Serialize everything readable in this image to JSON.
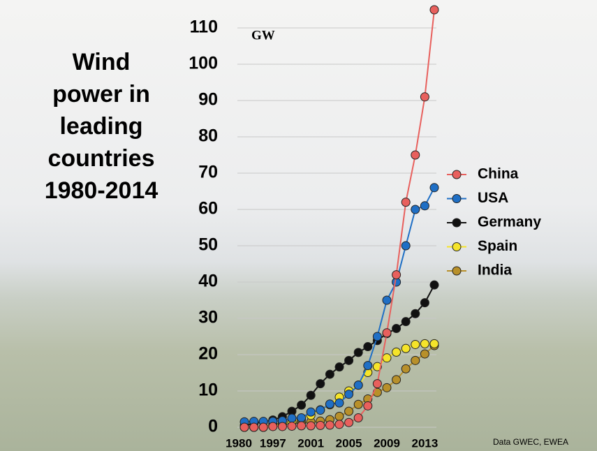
{
  "chart_data": {
    "type": "line",
    "title_lines": [
      "Wind",
      "power in",
      "leading",
      "countries",
      "1980-2014"
    ],
    "y_unit": "GW",
    "source": "Data GWEC, EWEA",
    "categories": [
      "1980",
      null,
      null,
      "1997",
      null,
      null,
      null,
      "2001",
      null,
      null,
      null,
      "2005",
      null,
      null,
      null,
      "2009",
      null,
      null,
      null,
      "2013",
      null
    ],
    "series": [
      {
        "name": "China",
        "color": "#e8605d",
        "values": [
          0,
          0,
          0,
          0.2,
          0.2,
          0.3,
          0.4,
          0.4,
          0.5,
          0.6,
          0.8,
          1.3,
          2.6,
          5.9,
          12,
          26,
          42,
          62,
          75,
          91,
          115
        ]
      },
      {
        "name": "USA",
        "color": "#1f6fc5",
        "values": [
          1.5,
          1.6,
          1.6,
          1.6,
          1.8,
          2.5,
          2.6,
          4.2,
          4.7,
          6.4,
          6.7,
          9.1,
          11.6,
          17,
          25,
          35,
          40,
          50,
          60,
          61,
          66
        ]
      },
      {
        "name": "Germany",
        "color": "#111111",
        "values": [
          0.5,
          1,
          1.5,
          2,
          2.9,
          4.4,
          6.1,
          8.8,
          12,
          14.6,
          16.6,
          18.4,
          20.6,
          22.2,
          23.9,
          25.8,
          27.2,
          29.1,
          31.3,
          34.3,
          39.2
        ]
      },
      {
        "name": "Spain",
        "color": "#f5e42a",
        "values": [
          0,
          0,
          0,
          0.4,
          0.8,
          1.5,
          2.2,
          3.3,
          4.8,
          6.2,
          8.3,
          10,
          11.6,
          15.1,
          16.7,
          19.1,
          20.7,
          21.7,
          22.8,
          23,
          23
        ]
      },
      {
        "name": "India",
        "color": "#b8902a",
        "values": [
          0,
          0,
          0,
          0.9,
          1,
          1.1,
          1.2,
          1.5,
          1.7,
          2.1,
          3,
          4.4,
          6.3,
          7.8,
          9.6,
          10.9,
          13.1,
          16.1,
          18.4,
          20.2,
          22.5
        ]
      }
    ],
    "ylim": [
      0,
      115
    ],
    "yticks": [
      0,
      10,
      20,
      30,
      40,
      50,
      60,
      70,
      80,
      90,
      100,
      110
    ],
    "grid": true
  }
}
